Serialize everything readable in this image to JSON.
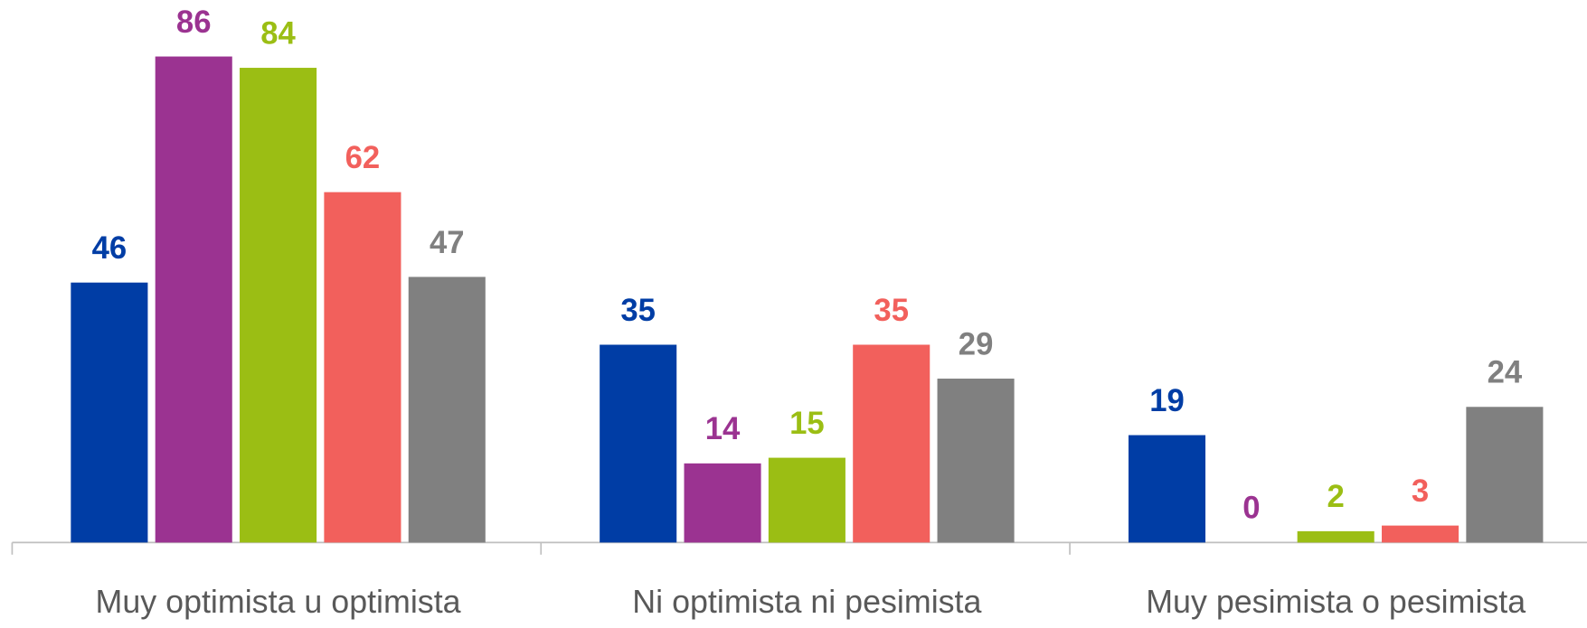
{
  "chart_data": {
    "type": "bar",
    "categories": [
      "Muy optimista u optimista",
      "Ni optimista ni pesimista",
      "Muy pesimista o pesimista"
    ],
    "series": [
      {
        "color": "#003da5",
        "values": [
          46,
          35,
          19
        ]
      },
      {
        "color": "#9b3391",
        "values": [
          86,
          14,
          0
        ]
      },
      {
        "color": "#9bbe14",
        "values": [
          84,
          15,
          2
        ]
      },
      {
        "color": "#f2605c",
        "values": [
          62,
          35,
          3
        ]
      },
      {
        "color": "#808080",
        "values": [
          47,
          29,
          24
        ]
      }
    ],
    "ylim": [
      0,
      96
    ]
  }
}
